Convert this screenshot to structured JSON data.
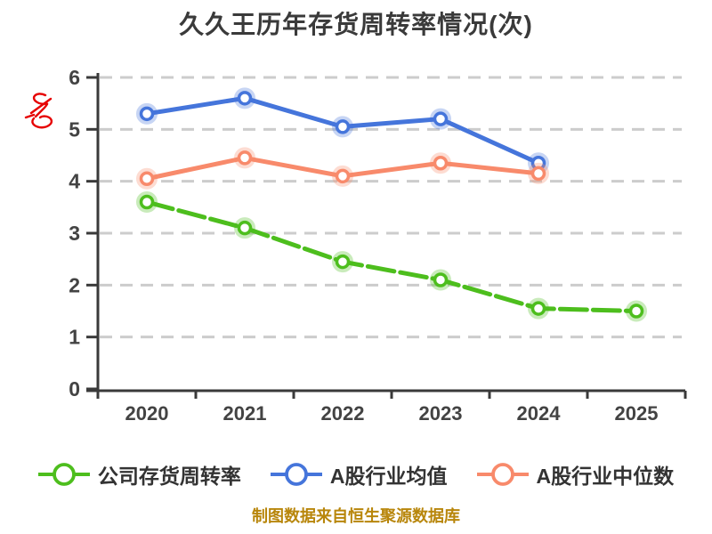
{
  "title": "久久王历年存货周转率情况(次)",
  "footer": "制图数据来自恒生聚源数据库",
  "chart_data": {
    "type": "line",
    "title": "久久王历年存货周转率情况(次)",
    "categories": [
      "2020",
      "2021",
      "2022",
      "2023",
      "2024",
      "2025"
    ],
    "series": [
      {
        "name": "公司存货周转率",
        "values": [
          3.6,
          3.1,
          2.45,
          2.1,
          1.55,
          1.5
        ],
        "color": "#4dbe1d",
        "line_style": "dashed",
        "marker": "hollow-circle"
      },
      {
        "name": "A股行业均值",
        "values": [
          5.3,
          5.6,
          5.05,
          5.2,
          4.35,
          null
        ],
        "color": "#4575db",
        "line_style": "solid",
        "marker": "hollow-circle"
      },
      {
        "name": "A股行业中位数",
        "values": [
          4.05,
          4.45,
          4.1,
          4.35,
          4.15,
          null
        ],
        "color": "#f88a6b",
        "line_style": "solid",
        "marker": "hollow-circle"
      }
    ],
    "xlabel": "",
    "ylabel": "",
    "ylim": [
      0,
      6
    ],
    "y_ticks": [
      0,
      1,
      2,
      3,
      4,
      5,
      6
    ],
    "grid": "horizontal-dashed",
    "legend_position": "bottom"
  },
  "style": {
    "background": "#ffffff",
    "grid_color": "#cccccc",
    "axis_color": "#3a3a3a",
    "tick_label_color": "#434343",
    "footer_color": "#b8860b",
    "annotation_color": "#e60000"
  }
}
